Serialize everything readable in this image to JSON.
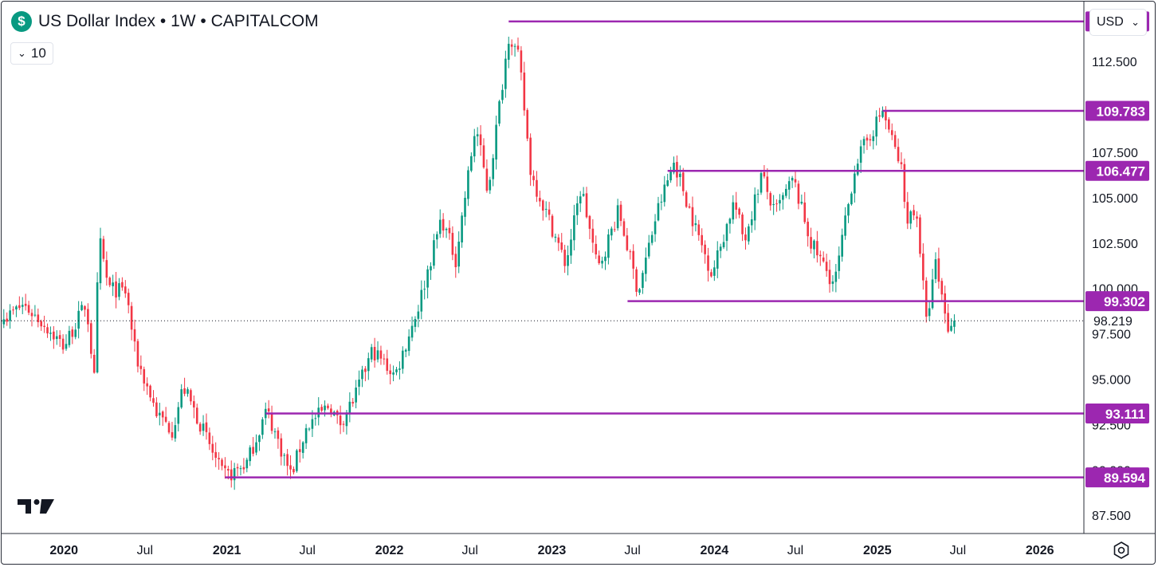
{
  "header": {
    "icon": "dollar-sign-icon",
    "icon_glyph": "$",
    "title": "US Dollar Index • 1W • CAPITALCOM",
    "interval_count": "10",
    "currency": "USD"
  },
  "colors": {
    "up": "#089981",
    "down": "#f23645",
    "level_line": "#9c27b0",
    "axis_text": "#131722",
    "grid_border": "#2a2e39"
  },
  "chart_data": {
    "type": "candlestick",
    "x_ticks": [
      {
        "date": "2020-01-01",
        "label": "2020",
        "bold": true
      },
      {
        "date": "2020-07-01",
        "label": "Jul",
        "bold": false
      },
      {
        "date": "2021-01-01",
        "label": "2021",
        "bold": true
      },
      {
        "date": "2021-07-01",
        "label": "Jul",
        "bold": false
      },
      {
        "date": "2022-01-01",
        "label": "2022",
        "bold": true
      },
      {
        "date": "2022-07-01",
        "label": "Jul",
        "bold": false
      },
      {
        "date": "2023-01-01",
        "label": "2023",
        "bold": true
      },
      {
        "date": "2023-07-01",
        "label": "Jul",
        "bold": false
      },
      {
        "date": "2024-01-01",
        "label": "2024",
        "bold": true
      },
      {
        "date": "2024-07-01",
        "label": "Jul",
        "bold": false
      },
      {
        "date": "2025-01-01",
        "label": "2025",
        "bold": true
      },
      {
        "date": "2025-07-01",
        "label": "Jul",
        "bold": false
      },
      {
        "date": "2026-01-01",
        "label": "2026",
        "bold": true
      }
    ],
    "y_ticks": [
      {
        "value": 87.5,
        "label": "87.500"
      },
      {
        "value": 90.0,
        "label": "90.000"
      },
      {
        "value": 92.5,
        "label": "92.500"
      },
      {
        "value": 95.0,
        "label": "95.000"
      },
      {
        "value": 97.5,
        "label": "97.500"
      },
      {
        "value": 100.0,
        "label": "100.000"
      },
      {
        "value": 102.5,
        "label": "102.500"
      },
      {
        "value": 105.0,
        "label": "105.000"
      },
      {
        "value": 107.5,
        "label": "107.500"
      },
      {
        "value": 112.5,
        "label": "112.500"
      }
    ],
    "ylim": [
      86.5,
      115.8
    ],
    "xlim": [
      "2019-08-14",
      "2026-04-10"
    ],
    "current_price": {
      "value": 98.219,
      "label": "98.219"
    },
    "levels": [
      {
        "value": 114.708,
        "label": "114.708",
        "start": "2022-09-26"
      },
      {
        "value": 109.783,
        "label": "109.783",
        "start": "2025-01-13"
      },
      {
        "value": 106.477,
        "label": "106.477",
        "start": "2023-09-18"
      },
      {
        "value": 99.302,
        "label": "99.302",
        "start": "2023-06-20"
      },
      {
        "value": 93.111,
        "label": "93.111",
        "start": "2021-03-29"
      },
      {
        "value": 89.594,
        "label": "89.594",
        "start": "2020-12-28"
      }
    ],
    "anchors": [
      [
        "2019-08-19",
        98.3
      ],
      [
        "2019-10-01",
        99.1
      ],
      [
        "2019-11-15",
        98.1
      ],
      [
        "2020-01-01",
        96.8
      ],
      [
        "2020-02-20",
        99.2
      ],
      [
        "2020-03-09",
        95.0
      ],
      [
        "2020-03-20",
        102.8
      ],
      [
        "2020-04-10",
        100.0
      ],
      [
        "2020-05-20",
        99.8
      ],
      [
        "2020-06-10",
        96.3
      ],
      [
        "2020-07-30",
        93.0
      ],
      [
        "2020-09-01",
        92.2
      ],
      [
        "2020-09-25",
        94.6
      ],
      [
        "2020-11-05",
        92.4
      ],
      [
        "2020-12-20",
        89.8
      ],
      [
        "2021-01-06",
        89.7
      ],
      [
        "2021-02-15",
        90.4
      ],
      [
        "2021-03-31",
        93.3
      ],
      [
        "2021-05-25",
        89.7
      ],
      [
        "2021-06-30",
        92.4
      ],
      [
        "2021-08-20",
        93.6
      ],
      [
        "2021-09-10",
        92.5
      ],
      [
        "2021-10-15",
        94.0
      ],
      [
        "2021-11-24",
        96.6
      ],
      [
        "2022-01-14",
        95.2
      ],
      [
        "2022-03-07",
        99.0
      ],
      [
        "2022-04-28",
        103.9
      ],
      [
        "2022-05-30",
        101.6
      ],
      [
        "2022-07-14",
        109.0
      ],
      [
        "2022-08-10",
        105.3
      ],
      [
        "2022-09-27",
        114.1
      ],
      [
        "2022-10-20",
        112.5
      ],
      [
        "2022-11-15",
        106.3
      ],
      [
        "2022-12-30",
        103.5
      ],
      [
        "2023-02-01",
        101.3
      ],
      [
        "2023-03-08",
        105.6
      ],
      [
        "2023-04-14",
        101.0
      ],
      [
        "2023-05-31",
        104.3
      ],
      [
        "2023-07-14",
        99.8
      ],
      [
        "2023-08-25",
        104.2
      ],
      [
        "2023-10-03",
        107.0
      ],
      [
        "2023-11-20",
        103.3
      ],
      [
        "2023-12-27",
        100.8
      ],
      [
        "2024-02-14",
        104.8
      ],
      [
        "2024-03-08",
        102.6
      ],
      [
        "2024-04-16",
        106.3
      ],
      [
        "2024-05-15",
        104.1
      ],
      [
        "2024-06-26",
        106.0
      ],
      [
        "2024-08-05",
        102.5
      ],
      [
        "2024-09-27",
        100.2
      ],
      [
        "2024-11-13",
        106.9
      ],
      [
        "2025-01-13",
        109.8
      ],
      [
        "2025-02-26",
        106.4
      ],
      [
        "2025-03-05",
        104.0
      ],
      [
        "2025-03-31",
        104.1
      ],
      [
        "2025-04-21",
        98.1
      ],
      [
        "2025-05-12",
        101.3
      ],
      [
        "2025-06-12",
        97.5
      ],
      [
        "2025-06-23",
        98.219
      ]
    ]
  }
}
